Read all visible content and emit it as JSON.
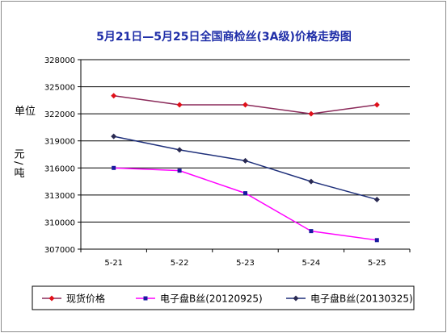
{
  "chart_data": {
    "type": "line",
    "title": "5月21日—5月25日全国商检丝(3A级)价格走势图",
    "ylabel_top": "单位",
    "ylabel_bottom": "元/吨",
    "categories": [
      "5-21",
      "5-22",
      "5-23",
      "5-24",
      "5-25"
    ],
    "ylim": [
      307000,
      328000
    ],
    "yticks": [
      "328000",
      "325000",
      "322000",
      "319000",
      "316000",
      "313000",
      "310000",
      "307000"
    ],
    "grid": true,
    "legend_position": "bottom",
    "series": [
      {
        "name": "现货价格",
        "color": "#8b2a5a",
        "marker_color": "#e0101a",
        "marker": "diamond",
        "values": [
          324000,
          323000,
          323000,
          322000,
          323000
        ]
      },
      {
        "name": "电子盘B丝(20120925)",
        "color": "#ff00ff",
        "marker_color": "#1a1aa0",
        "marker": "square",
        "values": [
          316000,
          315700,
          313200,
          309000,
          308000
        ]
      },
      {
        "name": "电子盘B丝(20130325)",
        "color": "#1e2f7a",
        "marker_color": "#2a2a52",
        "marker": "diamond",
        "values": [
          319500,
          318000,
          316800,
          314500,
          312500
        ]
      }
    ]
  }
}
